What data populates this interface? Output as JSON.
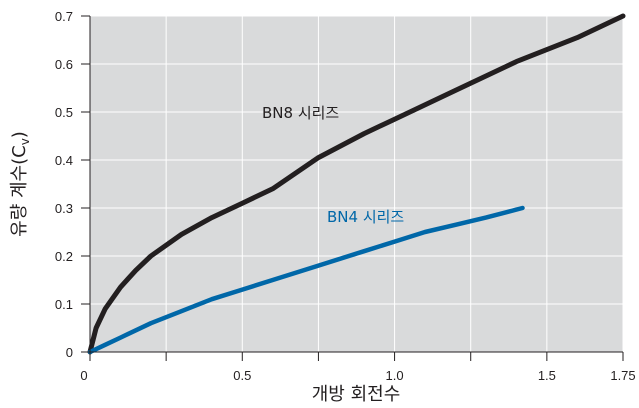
{
  "chart_data": {
    "type": "line",
    "title": "",
    "xlabel": "개방 회전수",
    "ylabel": "유량 계수(C",
    "ylabel_subscript": "v",
    "ylabel_suffix": ")",
    "xlim": [
      0,
      1.75
    ],
    "ylim": [
      0,
      0.7
    ],
    "x_ticks": [
      0,
      0.25,
      0.5,
      0.75,
      1.0,
      1.25,
      1.5,
      1.75
    ],
    "x_tick_labels": [
      "0",
      "",
      "0.5",
      "",
      "1.0",
      "",
      "1.5",
      "1.75"
    ],
    "y_ticks": [
      0,
      0.1,
      0.2,
      0.3,
      0.4,
      0.5,
      0.6,
      0.7
    ],
    "y_tick_labels": [
      "0",
      "0.1",
      "0.2",
      "0.3",
      "0.4",
      "0.5",
      "0.6",
      "0.7"
    ],
    "grid": true,
    "plot_background": "#d9dadb",
    "grid_color": "#ffffff",
    "series": [
      {
        "name": "BN8 시리즈",
        "color": "#231f20",
        "x": [
          0,
          0.02,
          0.05,
          0.1,
          0.15,
          0.2,
          0.3,
          0.4,
          0.5,
          0.6,
          0.75,
          0.9,
          1.0,
          1.2,
          1.4,
          1.6,
          1.75
        ],
        "y": [
          0,
          0.05,
          0.09,
          0.135,
          0.17,
          0.2,
          0.245,
          0.28,
          0.31,
          0.34,
          0.405,
          0.455,
          0.485,
          0.545,
          0.605,
          0.655,
          0.7
        ]
      },
      {
        "name": "BN4 시리즈",
        "color": "#0067a8",
        "x": [
          0,
          0.05,
          0.1,
          0.2,
          0.3,
          0.4,
          0.5,
          0.6,
          0.75,
          0.9,
          1.0,
          1.1,
          1.2,
          1.3,
          1.42
        ],
        "y": [
          0,
          0.015,
          0.03,
          0.06,
          0.085,
          0.11,
          0.13,
          0.15,
          0.18,
          0.21,
          0.23,
          0.25,
          0.265,
          0.28,
          0.3
        ]
      }
    ]
  }
}
